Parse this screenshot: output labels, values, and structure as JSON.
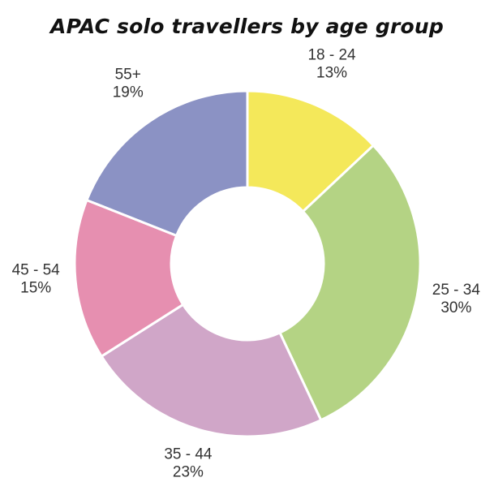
{
  "chart_data": {
    "type": "pie",
    "title": "APAC solo travellers by age group",
    "categories": [
      "18 - 24",
      "25 - 34",
      "35 - 44",
      "45 - 54",
      "55+"
    ],
    "values": [
      13,
      30,
      23,
      15,
      19
    ],
    "value_labels": [
      "13%",
      "30%",
      "23%",
      "15%",
      "19%"
    ],
    "colors": [
      "#f4e85a",
      "#b4d384",
      "#d0a6c8",
      "#e68fb0",
      "#8b92c4"
    ],
    "donut": true,
    "legend": "none"
  }
}
